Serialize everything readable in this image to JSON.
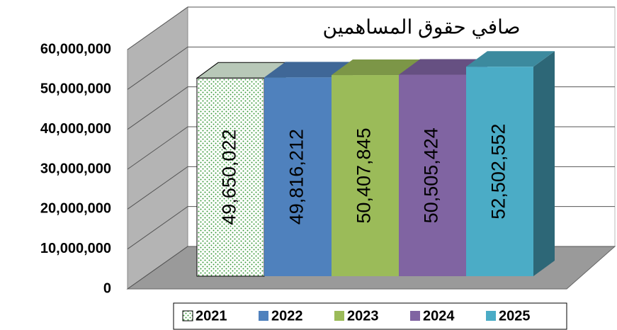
{
  "chart_data": {
    "type": "bar3d",
    "title": "صافي حقوق المساهمين",
    "categories": [
      null
    ],
    "series": [
      {
        "name": "2021",
        "color": "#3a9a3a",
        "pattern": "dots",
        "values": [
          49650022
        ],
        "value_labels": [
          "49,650,022"
        ]
      },
      {
        "name": "2022",
        "color": "#4f81bd",
        "values": [
          49816212
        ],
        "value_labels": [
          "49,816,212"
        ]
      },
      {
        "name": "2023",
        "color": "#9bbb59",
        "values": [
          50407845
        ],
        "value_labels": [
          "50,407,845"
        ]
      },
      {
        "name": "2024",
        "color": "#8064a2",
        "values": [
          50505424
        ],
        "value_labels": [
          "50,505,424"
        ]
      },
      {
        "name": "2025",
        "color": "#4bacc6",
        "values": [
          52502552
        ],
        "value_labels": [
          "52,502,552"
        ]
      }
    ],
    "ylim": [
      0,
      60000000
    ],
    "yticks": [
      0,
      {
        "value": 10000000,
        "label": "10,000,000"
      },
      {
        "value": 20000000,
        "label": "20,000,000"
      },
      {
        "value": 30000000,
        "label": "30,000,000"
      },
      {
        "value": 40000000,
        "label": "40,000,000"
      },
      {
        "value": 50000000,
        "label": "50,000,000"
      },
      {
        "value": 60000000,
        "label": "60,000,000"
      }
    ],
    "grid": true,
    "legend": "bottom"
  }
}
